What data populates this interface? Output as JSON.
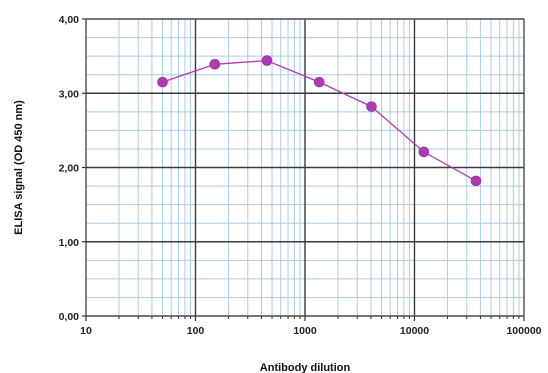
{
  "chart_data": {
    "type": "line",
    "title": "",
    "xlabel": "Antibody dilution",
    "ylabel": "ELISA signal (OD 450 nm)",
    "x_scale": "log",
    "xlim": [
      10,
      100000
    ],
    "ylim": [
      0,
      4
    ],
    "x_ticks": [
      10,
      100,
      1000,
      10000,
      100000
    ],
    "x_tick_labels": [
      "10",
      "100",
      "1000",
      "10000",
      "100000"
    ],
    "y_ticks": [
      0,
      1,
      2,
      3,
      4
    ],
    "y_tick_labels": [
      "0,00",
      "1,00",
      "2,00",
      "3,00",
      "4,00"
    ],
    "grid": true,
    "legend": "none",
    "series": [
      {
        "color": "#b03ab4",
        "points": [
          {
            "x": 50,
            "y": 3.15
          },
          {
            "x": 150,
            "y": 3.39
          },
          {
            "x": 450,
            "y": 3.44
          },
          {
            "x": 1350,
            "y": 3.15
          },
          {
            "x": 4050,
            "y": 2.82
          },
          {
            "x": 12150,
            "y": 2.21
          },
          {
            "x": 36450,
            "y": 1.82
          }
        ]
      }
    ]
  }
}
